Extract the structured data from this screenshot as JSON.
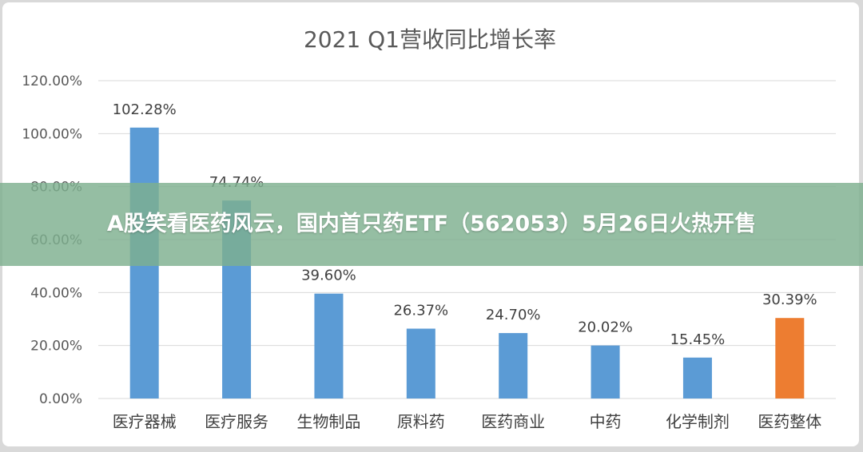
{
  "banner": {
    "headline": "A股笑看医药风云，国内首只药ETF（562053）5月26日火热开售"
  },
  "colors": {
    "default_bar": "#5b9bd5",
    "highlight_bar": "#ed7d31",
    "gridline": "#d9d9d9",
    "banner_bg": "#7eb08f"
  },
  "chart_data": {
    "type": "bar",
    "title": "2021 Q1营收同比增长率",
    "xlabel": "",
    "ylabel": "",
    "ylim": [
      0,
      120
    ],
    "yticks": [
      "0.00%",
      "20.00%",
      "40.00%",
      "60.00%",
      "80.00%",
      "100.00%",
      "120.00%"
    ],
    "grid": true,
    "legend": "none",
    "categories": [
      "医疗器械",
      "医疗服务",
      "生物制品",
      "原料药",
      "医药商业",
      "中药",
      "化学制剂",
      "医药整体"
    ],
    "values": [
      102.28,
      74.74,
      39.6,
      26.37,
      24.7,
      20.02,
      15.45,
      30.39
    ],
    "data_labels": [
      "102.28%",
      "74.74%",
      "39.60%",
      "26.37%",
      "24.70%",
      "20.02%",
      "15.45%",
      "30.39%"
    ],
    "highlight_category": "医药整体"
  }
}
